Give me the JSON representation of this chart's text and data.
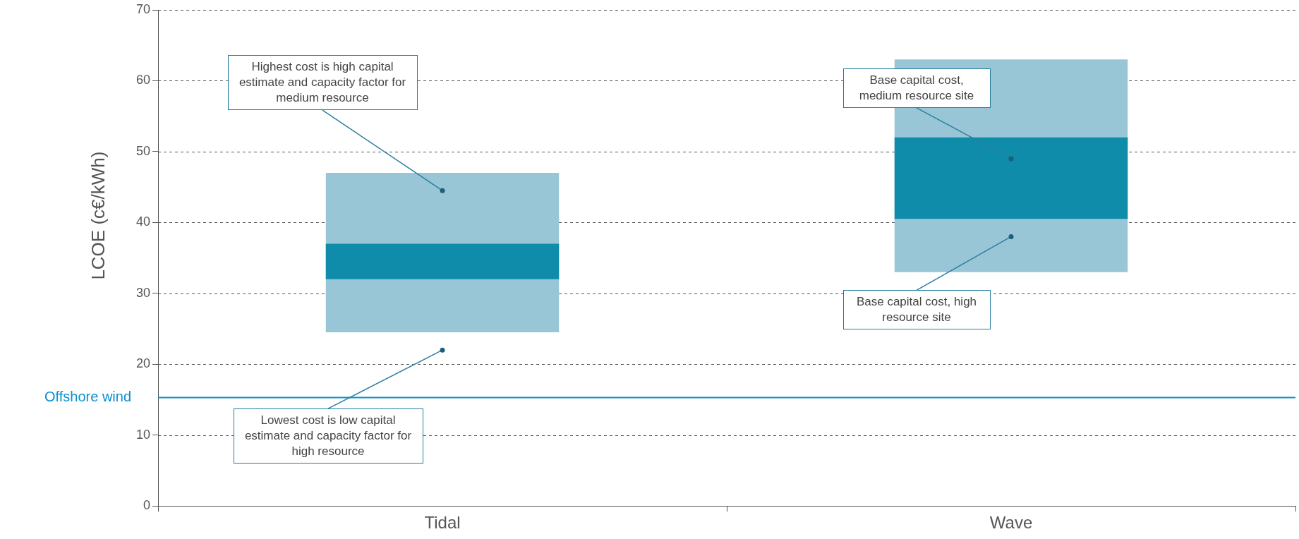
{
  "chart_data": {
    "type": "bar",
    "ylabel": "LCOE (c€/kWh)",
    "categories": [
      "Tidal",
      "Wave"
    ],
    "series": [
      {
        "color": "#99c6d7",
        "base": [
          24.5,
          33
        ],
        "values": [
          22.5,
          30
        ]
      },
      {
        "color": "#0e8ca9",
        "base": [
          32,
          40.5
        ],
        "values": [
          5,
          11.5
        ]
      }
    ],
    "ylim": [
      0,
      70
    ],
    "yticks": [
      0,
      10,
      20,
      30,
      40,
      50,
      60,
      70
    ],
    "grid": "y",
    "legend": false,
    "ref_lines": [
      {
        "axis": "y",
        "value": 15.3,
        "label": "Offshore wind",
        "color": "#0a8fd0"
      }
    ],
    "annotations": [
      {
        "text": "Highest cost is high capital estimate and capacity factor for medium resource",
        "x": "Tidal",
        "y": 44.5
      },
      {
        "text": "Lowest cost is low capital estimate and capacity factor for high resource",
        "x": "Tidal",
        "y": 22
      },
      {
        "text": "Base capital cost, medium resource site",
        "x": "Wave",
        "y": 49
      },
      {
        "text": "Base capital cost, high resource site",
        "x": "Wave",
        "y": 38
      }
    ]
  }
}
